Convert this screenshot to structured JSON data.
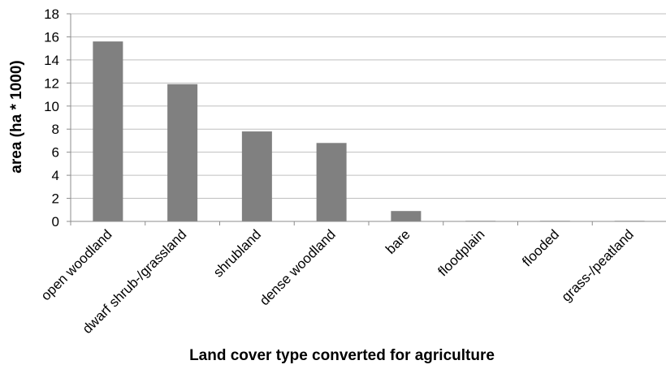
{
  "chart_data": {
    "type": "bar",
    "title": "",
    "xlabel": "Land cover type converted for agriculture",
    "ylabel": "area (ha * 1000)",
    "categories": [
      "open woodland",
      "dwarf shrub-/grassland",
      "shrubland",
      "dense woodland",
      "bare",
      "floodplain",
      "flooded",
      "grass-/peatland"
    ],
    "values": [
      15.6,
      11.9,
      7.8,
      6.8,
      0.9,
      0.05,
      0.05,
      0.05
    ],
    "ylim": [
      0,
      18
    ],
    "yticks": [
      "0",
      "2",
      "4",
      "6",
      "8",
      "10",
      "12",
      "14",
      "16",
      "18"
    ],
    "grid": true,
    "legend": "none",
    "bar_color": "#808080",
    "grid_color": "#bfbfbf",
    "axis_color": "#8c8c8c"
  }
}
